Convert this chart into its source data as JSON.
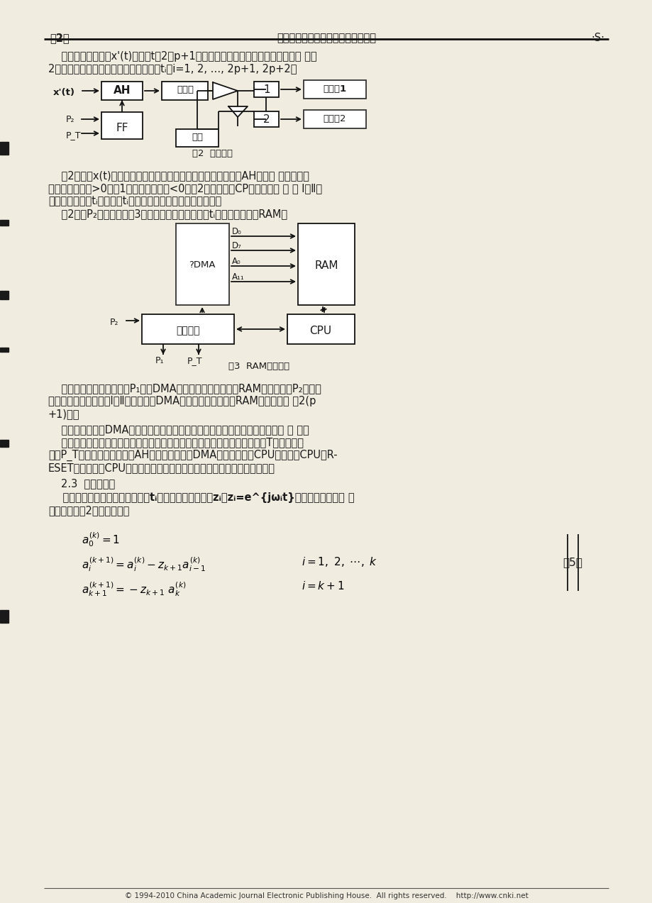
{
  "page_bg": "#f0ece0",
  "text_color": "#1a1a1a",
  "header_left": "第2期",
  "header_center": "朱俊炎等：一种新型谱分析仪的设计",
  "header_right": "·S·",
  "fig2_caption": "图2  过零检测",
  "fig3_caption": "图3  RAM控制逻辑",
  "eq_label": "（5）",
  "footer": "© 1994-2010 China Academic Journal Electronic Publishing House.  All rights reserved.    http://www.cnki.net"
}
